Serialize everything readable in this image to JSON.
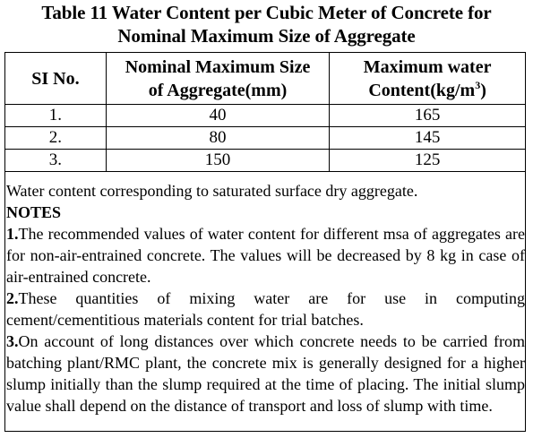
{
  "title": {
    "line1": "Table 11 Water Content per Cubic Meter of Concrete for",
    "line2": "Nominal Maximum Size of Aggregate"
  },
  "table": {
    "headers": {
      "sl": "SI No.",
      "size_line1": "Nominal Maximum Size",
      "size_line2": "of Aggregate(mm)",
      "water_line1": "Maximum water",
      "water_line2_pre": "Content(kg/m",
      "water_line2_sup": "3",
      "water_line2_post": ")"
    },
    "rows": [
      {
        "sl": "1.",
        "size": "40",
        "water": "165"
      },
      {
        "sl": "2.",
        "size": "80",
        "water": "145"
      },
      {
        "sl": "3.",
        "size": "150",
        "water": "125"
      }
    ]
  },
  "footnote": "Water content corresponding to saturated surface dry aggregate.",
  "notes": {
    "heading": "NOTES",
    "items": [
      {
        "num": "1.",
        "text": "The recommended values of water content for different msa of aggregates are for non-air-entrained concrete. The values will be decreased by 8 kg in case of air-entrained concrete."
      },
      {
        "num": "2.",
        "text": "These quantities of mixing water are for use in computing cement/cementitious materials content for trial batches."
      },
      {
        "num": "3.",
        "text": "On account of long distances over which concrete needs to be carried from batching plant/RMC plant, the concrete mix is generally designed for a higher slump initially than the slump required at the time of placing. The initial slump value shall depend  on the distance of transport and loss of slump with time."
      }
    ]
  }
}
